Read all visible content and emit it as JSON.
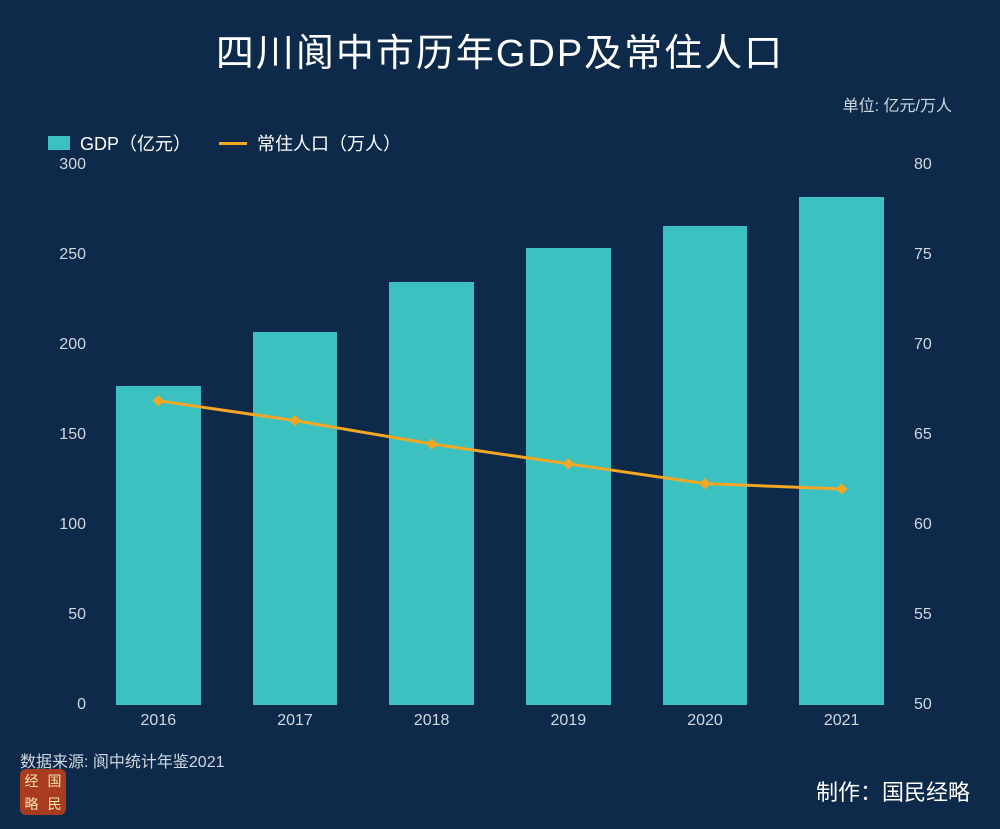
{
  "title": "四川阆中市历年GDP及常住人口",
  "unit_label": "单位: 亿元/万人",
  "legend": {
    "gdp": "GDP（亿元）",
    "pop": "常住人口（万人）"
  },
  "chart": {
    "type": "bar+line",
    "background_color": "#0d2a4a",
    "categories": [
      "2016",
      "2017",
      "2018",
      "2019",
      "2020",
      "2021"
    ],
    "bar_series": {
      "name": "GDP（亿元）",
      "color": "#3cc1c1",
      "values": [
        177,
        207,
        235,
        254,
        266,
        282
      ]
    },
    "line_series": {
      "name": "常住人口（万人）",
      "color": "#f5a623",
      "line_width": 3,
      "marker": "diamond",
      "marker_size": 8,
      "values": [
        66.9,
        65.8,
        64.5,
        63.4,
        62.3,
        62.0
      ]
    },
    "y_left": {
      "min": 0,
      "max": 300,
      "step": 50
    },
    "y_right": {
      "min": 50,
      "max": 80,
      "step": 5
    },
    "bar_width_ratio": 0.62,
    "axis_label_color": "#d0d8e0",
    "axis_fontsize": 16,
    "title_fontsize": 38
  },
  "source": "数据来源: 阆中统计年鉴2021",
  "credit": "制作：国民经略",
  "logo_chars": [
    "经",
    "国",
    "略",
    "民"
  ]
}
